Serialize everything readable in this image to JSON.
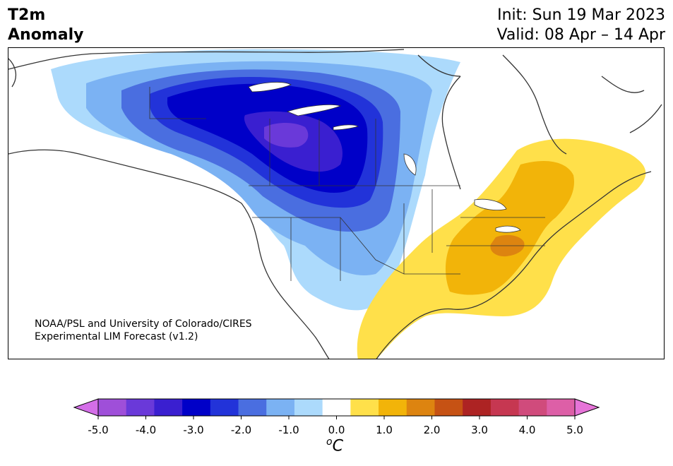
{
  "title": {
    "line1": "T2m",
    "line2": "Anomaly"
  },
  "dates": {
    "init": "Init: Sun 19 Mar 2023",
    "valid": "Valid: 08 Apr – 14 Apr"
  },
  "credit": {
    "line1": "NOAA/PSL and University of Colorado/CIRES",
    "line2": "Experimental LIM Forecast (v1.2)"
  },
  "colorbar": {
    "ticks": [
      "-5.0",
      "-4.0",
      "-3.0",
      "-2.0",
      "-1.0",
      "0.0",
      "1.0",
      "2.0",
      "3.0",
      "4.0",
      "5.0"
    ],
    "unit_prefix": "o",
    "unit": "C",
    "colors": [
      "#d46ee8",
      "#9f4fd9",
      "#6a39d9",
      "#3a1fd0",
      "#0000c8",
      "#2233d9",
      "#4a6ee0",
      "#7bb2f3",
      "#acdafc",
      "#ffffff",
      "#ffe04a",
      "#f2b409",
      "#dd8410",
      "#c65214",
      "#ad2323",
      "#c63751",
      "#d04b7c",
      "#dd5fa7",
      "#e674d8"
    ],
    "arrow_low": "#d46ee8",
    "arrow_high": "#e674d8"
  },
  "map": {
    "cold_colors": {
      "light": "#acdafc",
      "mid": "#7bb2f3",
      "blue": "#4a6ee0",
      "deep": "#2233d9",
      "core": "#0000c8",
      "violet": "#3a1fd0",
      "purple": "#6a39d9"
    },
    "warm_colors": {
      "yellow": "#ffe04a",
      "gold": "#f2b409",
      "orange": "#dd8410"
    }
  }
}
